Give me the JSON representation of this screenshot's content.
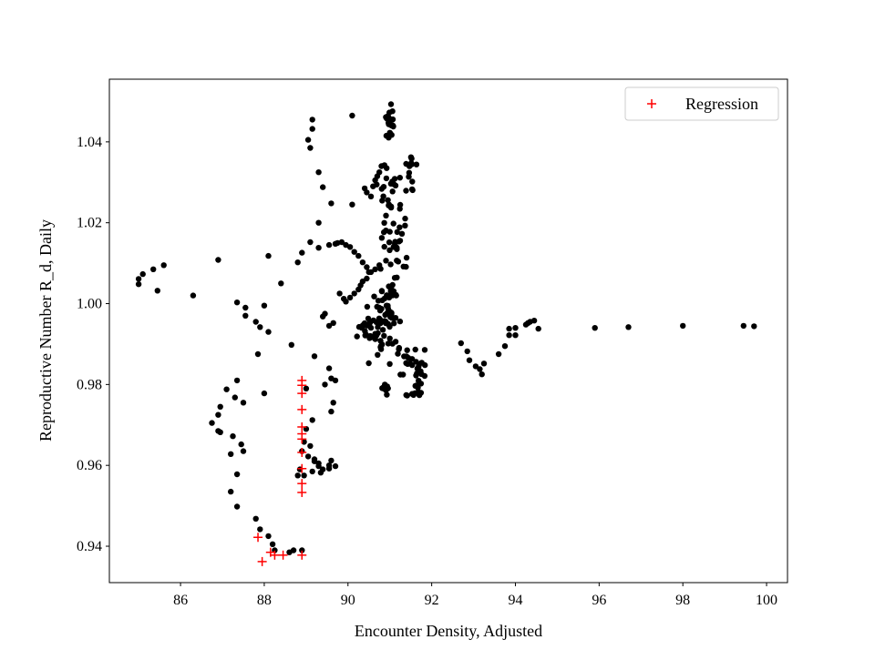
{
  "chart_data": {
    "type": "scatter",
    "title": "",
    "xlabel": "Encounter Density, Adjusted",
    "ylabel": "Reproductive Number R_d, Daily",
    "xlim": [
      84.3,
      100.5
    ],
    "ylim": [
      0.931,
      1.0555
    ],
    "x_ticks": [
      86,
      88,
      90,
      92,
      94,
      96,
      98,
      100
    ],
    "y_ticks": [
      0.94,
      0.96,
      0.98,
      1.0,
      1.02,
      1.04
    ],
    "y_tick_labels": [
      "0.94",
      "0.96",
      "0.98",
      "1.00",
      "1.02",
      "1.04"
    ],
    "grid": false,
    "legend_position": "upper-right",
    "colors": {
      "observed": "#000000",
      "regression": "#ff0000"
    },
    "series": [
      {
        "marker": "dot",
        "points": [
          [
            85.0,
            1.0048
          ],
          [
            85.0,
            1.0061
          ],
          [
            85.1,
            1.0073
          ],
          [
            85.35,
            1.0085
          ],
          [
            85.6,
            1.0095
          ],
          [
            85.45,
            1.0032
          ],
          [
            86.3,
            1.002
          ],
          [
            86.9,
            1.0108
          ],
          [
            87.35,
            1.0003
          ],
          [
            87.55,
            0.999
          ],
          [
            87.55,
            0.997
          ],
          [
            87.8,
            0.9955
          ],
          [
            87.9,
            0.9942
          ],
          [
            88.1,
            0.993
          ],
          [
            87.85,
            0.9875
          ],
          [
            88.0,
            0.9995
          ],
          [
            88.1,
            1.0118
          ],
          [
            88.4,
            1.005
          ],
          [
            88.65,
            0.9898
          ],
          [
            88.8,
            1.0102
          ],
          [
            88.9,
            1.0126
          ],
          [
            89.1,
            1.0152
          ],
          [
            89.3,
            1.0138
          ],
          [
            89.3,
            1.02
          ],
          [
            89.55,
            1.0145
          ],
          [
            89.7,
            1.0148
          ],
          [
            89.75,
            1.015
          ],
          [
            89.85,
            1.0152
          ],
          [
            89.95,
            1.0145
          ],
          [
            90.05,
            1.014
          ],
          [
            90.15,
            1.0128
          ],
          [
            90.25,
            1.0118
          ],
          [
            90.35,
            1.0102
          ],
          [
            90.45,
            1.009
          ],
          [
            90.5,
            1.0078
          ],
          [
            89.3,
            1.0325
          ],
          [
            89.4,
            1.0288
          ],
          [
            89.6,
            1.0248
          ],
          [
            90.1,
            1.0245
          ],
          [
            89.1,
            1.0385
          ],
          [
            89.05,
            1.0405
          ],
          [
            89.15,
            1.0432
          ],
          [
            89.15,
            1.0455
          ],
          [
            90.1,
            1.0465
          ],
          [
            90.4,
            1.0285
          ],
          [
            90.45,
            1.0275
          ],
          [
            90.55,
            1.0265
          ],
          [
            90.6,
            1.029
          ],
          [
            90.65,
            1.0305
          ],
          [
            90.7,
            1.0315
          ],
          [
            90.75,
            1.0325
          ],
          [
            90.8,
            1.034
          ],
          [
            89.8,
            1.0025
          ],
          [
            89.9,
            1.0012
          ],
          [
            89.95,
            1.0005
          ],
          [
            90.05,
            1.0015
          ],
          [
            90.15,
            1.0025
          ],
          [
            90.25,
            1.0035
          ],
          [
            90.3,
            1.0045
          ],
          [
            90.35,
            1.0055
          ],
          [
            90.45,
            1.0062
          ],
          [
            90.55,
            1.0078
          ],
          [
            90.65,
            1.0085
          ],
          [
            90.75,
            1.0095
          ],
          [
            89.45,
            0.9975
          ],
          [
            89.4,
            0.9968
          ],
          [
            89.55,
            0.9945
          ],
          [
            89.65,
            0.9952
          ],
          [
            89.2,
            0.987
          ],
          [
            89.45,
            0.98
          ],
          [
            89.55,
            0.984
          ],
          [
            89.6,
            0.9815
          ],
          [
            89.7,
            0.981
          ],
          [
            89.65,
            0.9755
          ],
          [
            89.6,
            0.9733
          ],
          [
            89.15,
            0.9712
          ],
          [
            89.0,
            0.969
          ],
          [
            89.0,
            0.979
          ],
          [
            88.95,
            0.9658
          ],
          [
            88.9,
            0.9635
          ],
          [
            89.05,
            0.9622
          ],
          [
            89.2,
            0.961
          ],
          [
            89.3,
            0.9598
          ],
          [
            89.4,
            0.959
          ],
          [
            89.55,
            0.96
          ],
          [
            89.6,
            0.9612
          ],
          [
            89.7,
            0.9598
          ],
          [
            89.1,
            0.9648
          ],
          [
            89.2,
            0.9615
          ],
          [
            89.3,
            0.9605
          ],
          [
            89.15,
            0.9585
          ],
          [
            88.8,
            0.9575
          ],
          [
            88.95,
            0.9575
          ],
          [
            88.85,
            0.959
          ],
          [
            89.35,
            0.9582
          ],
          [
            89.55,
            0.9592
          ],
          [
            88.7,
            0.939
          ],
          [
            88.6,
            0.9385
          ],
          [
            88.9,
            0.939
          ],
          [
            88.2,
            0.9405
          ],
          [
            88.25,
            0.939
          ],
          [
            88.1,
            0.9425
          ],
          [
            87.9,
            0.9442
          ],
          [
            87.8,
            0.9468
          ],
          [
            87.35,
            0.9498
          ],
          [
            87.2,
            0.9535
          ],
          [
            87.35,
            0.9578
          ],
          [
            87.2,
            0.9628
          ],
          [
            87.5,
            0.9635
          ],
          [
            87.45,
            0.9652
          ],
          [
            87.25,
            0.9672
          ],
          [
            87.5,
            0.9755
          ],
          [
            87.3,
            0.9768
          ],
          [
            87.1,
            0.9788
          ],
          [
            86.95,
            0.9745
          ],
          [
            86.9,
            0.9725
          ],
          [
            86.75,
            0.9705
          ],
          [
            86.9,
            0.9685
          ],
          [
            86.95,
            0.9682
          ],
          [
            87.35,
            0.981
          ],
          [
            88.0,
            0.9778
          ],
          [
            92.7,
            0.9902
          ],
          [
            92.85,
            0.9882
          ],
          [
            92.9,
            0.986
          ],
          [
            93.05,
            0.9845
          ],
          [
            93.15,
            0.9838
          ],
          [
            93.2,
            0.9825
          ],
          [
            93.25,
            0.9852
          ],
          [
            93.6,
            0.9875
          ],
          [
            93.75,
            0.9895
          ],
          [
            93.85,
            0.9922
          ],
          [
            93.85,
            0.9938
          ],
          [
            94.0,
            0.994
          ],
          [
            94.25,
            0.9948
          ],
          [
            94.35,
            0.9955
          ],
          [
            94.45,
            0.9958
          ],
          [
            94.55,
            0.9938
          ],
          [
            94.3,
            0.9952
          ],
          [
            94.0,
            0.9922
          ],
          [
            95.9,
            0.994
          ],
          [
            96.7,
            0.9942
          ],
          [
            98.0,
            0.9945
          ],
          [
            99.45,
            0.9945
          ],
          [
            99.7,
            0.9944
          ]
        ],
        "clusters": [
          {
            "x": 90.55,
            "y": 0.9935,
            "sx": 0.22,
            "sy": 0.004,
            "n": 36
          },
          {
            "x": 90.95,
            "y": 0.9955,
            "sx": 0.18,
            "sy": 0.006,
            "n": 45
          },
          {
            "x": 91.1,
            "y": 1.014,
            "sx": 0.22,
            "sy": 0.007,
            "n": 45
          },
          {
            "x": 91.05,
            "y": 1.028,
            "sx": 0.25,
            "sy": 0.004,
            "n": 18
          },
          {
            "x": 91.0,
            "y": 1.044,
            "sx": 0.07,
            "sy": 0.0035,
            "n": 22
          },
          {
            "x": 91.5,
            "y": 1.033,
            "sx": 0.07,
            "sy": 0.003,
            "n": 12
          },
          {
            "x": 91.7,
            "y": 0.9835,
            "sx": 0.12,
            "sy": 0.005,
            "n": 20
          },
          {
            "x": 91.25,
            "y": 0.986,
            "sx": 0.25,
            "sy": 0.003,
            "n": 14
          },
          {
            "x": 90.85,
            "y": 0.979,
            "sx": 0.1,
            "sy": 0.0015,
            "n": 8
          },
          {
            "x": 91.6,
            "y": 0.9775,
            "sx": 0.12,
            "sy": 0.0006,
            "n": 8
          }
        ]
      },
      {
        "name": "Regression",
        "marker": "plus",
        "points": [
          [
            88.9,
            0.981
          ],
          [
            88.9,
            0.9798
          ],
          [
            88.9,
            0.9778
          ],
          [
            88.9,
            0.9738
          ],
          [
            88.9,
            0.9695
          ],
          [
            88.9,
            0.9678
          ],
          [
            88.9,
            0.9665
          ],
          [
            88.9,
            0.9632
          ],
          [
            88.9,
            0.9592
          ],
          [
            88.9,
            0.9555
          ],
          [
            88.9,
            0.9533
          ],
          [
            88.9,
            0.9378
          ],
          [
            87.85,
            0.9422
          ],
          [
            87.95,
            0.9362
          ],
          [
            88.15,
            0.9385
          ],
          [
            88.25,
            0.9378
          ],
          [
            88.45,
            0.9378
          ]
        ]
      }
    ]
  }
}
